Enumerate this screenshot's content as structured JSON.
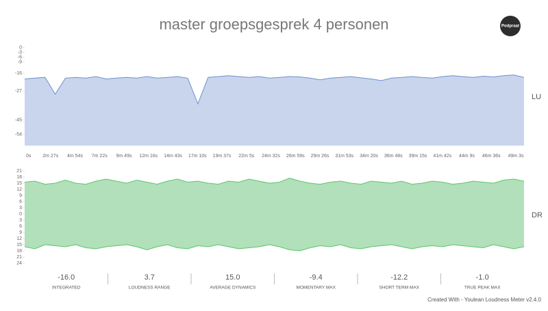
{
  "title": "master groepsgesprek 4 personen",
  "logo": "Podpraat",
  "chart_data": [
    {
      "type": "area",
      "side_label": "LU",
      "ylim": [
        -61,
        2
      ],
      "yticks": [
        0,
        -3,
        -6,
        -9,
        -16,
        -27,
        -45,
        -54
      ],
      "grid": false,
      "x_labels": [
        "0s",
        "2m 27s",
        "4m 54s",
        "7m 22s",
        "9m 49s",
        "12m 16s",
        "14m 43s",
        "17m 10s",
        "19m 37s",
        "22m 5s",
        "24m 32s",
        "26m 59s",
        "29m 26s",
        "31m 53s",
        "34m 20s",
        "36m 48s",
        "39m 15s",
        "41m 42s",
        "44m 9s",
        "46m 36s",
        "49m 3s"
      ],
      "series": [
        {
          "color": "#6f8fcc",
          "fill": "#c8d5ec",
          "values": [
            -19.5,
            -19,
            -18.5,
            -29,
            -19,
            -18.5,
            -19,
            -18,
            -19.5,
            -19,
            -18.5,
            -19,
            -18,
            -19,
            -18.5,
            -18,
            -19,
            -35,
            -18.5,
            -18,
            -17.5,
            -18,
            -18.5,
            -18,
            -19,
            -18.5,
            -18,
            -18.2,
            -19,
            -20,
            -19,
            -18.5,
            -18,
            -18.8,
            -19.5,
            -20.5,
            -19,
            -18.5,
            -18,
            -18.5,
            -19,
            -18,
            -17.5,
            -18,
            -18.5,
            -17.8,
            -18.2,
            -17.5,
            -17,
            -18.5
          ]
        }
      ]
    },
    {
      "type": "band",
      "side_label": "DR",
      "ylim": [
        -24,
        21
      ],
      "grid": false,
      "yticks": [
        21,
        18,
        15,
        12,
        9,
        6,
        3,
        0,
        {
          "value": -3,
          "label": "3"
        },
        {
          "value": -6,
          "label": "6"
        },
        {
          "value": -9,
          "label": "9"
        },
        {
          "value": -12,
          "label": "12"
        },
        {
          "value": -15,
          "label": "15"
        },
        {
          "value": -18,
          "label": "18"
        },
        {
          "value": -21,
          "label": "21"
        },
        {
          "value": -24,
          "label": "24"
        }
      ],
      "color": "#5cc46c",
      "fill": "#a9ddb3",
      "upper": [
        15.5,
        16,
        14.5,
        15,
        16.5,
        15,
        14.5,
        16,
        17,
        16,
        15,
        16.5,
        15.5,
        14.5,
        16,
        17,
        15.5,
        16,
        15,
        14.5,
        16,
        15.5,
        17,
        16,
        15,
        15.5,
        17.5,
        16,
        15,
        14.5,
        15.5,
        16,
        15,
        14.5,
        16,
        15.5,
        15,
        16,
        14.5,
        15,
        16,
        15.5,
        14.5,
        15,
        16,
        15.5,
        15,
        16.5,
        17,
        16
      ],
      "lower": [
        -16,
        -17,
        -15,
        -15.5,
        -16,
        -15,
        -16.5,
        -17,
        -16,
        -15.5,
        -15,
        -16,
        -17.5,
        -16,
        -15,
        -16.5,
        -17,
        -15.5,
        -16,
        -15,
        -16,
        -17,
        -16.5,
        -16,
        -15,
        -16,
        -17.5,
        -18,
        -16.5,
        -15.5,
        -16,
        -15,
        -16.5,
        -17,
        -16,
        -15.5,
        -15,
        -16,
        -17,
        -16,
        -15.5,
        -16,
        -15,
        -15.5,
        -16,
        -16.5,
        -15,
        -16,
        -17,
        -16
      ]
    }
  ],
  "stats": [
    {
      "value": "-16.0",
      "label": "INTEGRATED"
    },
    {
      "value": "3.7",
      "label": "LOUDNESS RANGE"
    },
    {
      "value": "15.0",
      "label": "AVERAGE DYNAMICS"
    },
    {
      "value": "-9.4",
      "label": "MOMENTARY MAX"
    },
    {
      "value": "-12.2",
      "label": "SHORT TERM MAX"
    },
    {
      "value": "-1.0",
      "label": "TRUE PEAK MAX"
    }
  ],
  "footer": "Created With - Youlean Loudness Meter v2.4.0"
}
